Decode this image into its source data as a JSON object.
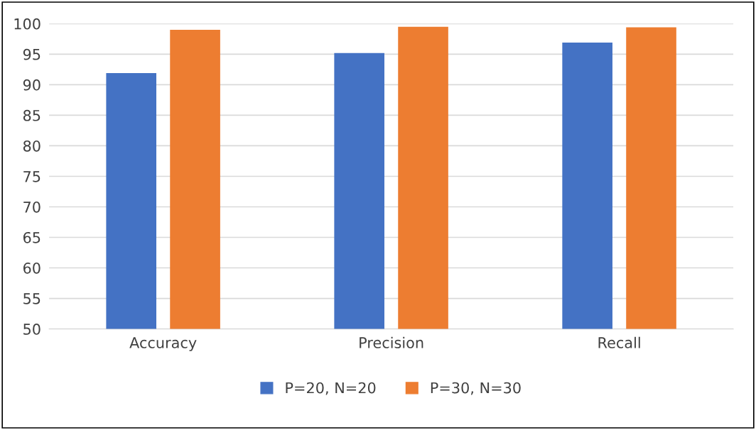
{
  "chart_data": {
    "type": "bar",
    "categories": [
      "Accuracy",
      "Precision",
      "Recall"
    ],
    "series": [
      {
        "name": "P=20, N=20",
        "color": "#4472c4",
        "values": [
          91.9,
          95.2,
          96.9
        ]
      },
      {
        "name": "P=30, N=30",
        "color": "#ed7d31",
        "values": [
          99.0,
          99.5,
          99.4
        ]
      }
    ],
    "ylim": [
      50,
      100
    ],
    "yticks": [
      50,
      55,
      60,
      65,
      70,
      75,
      80,
      85,
      90,
      95,
      100
    ],
    "grid": "y",
    "legend": "bottom"
  }
}
